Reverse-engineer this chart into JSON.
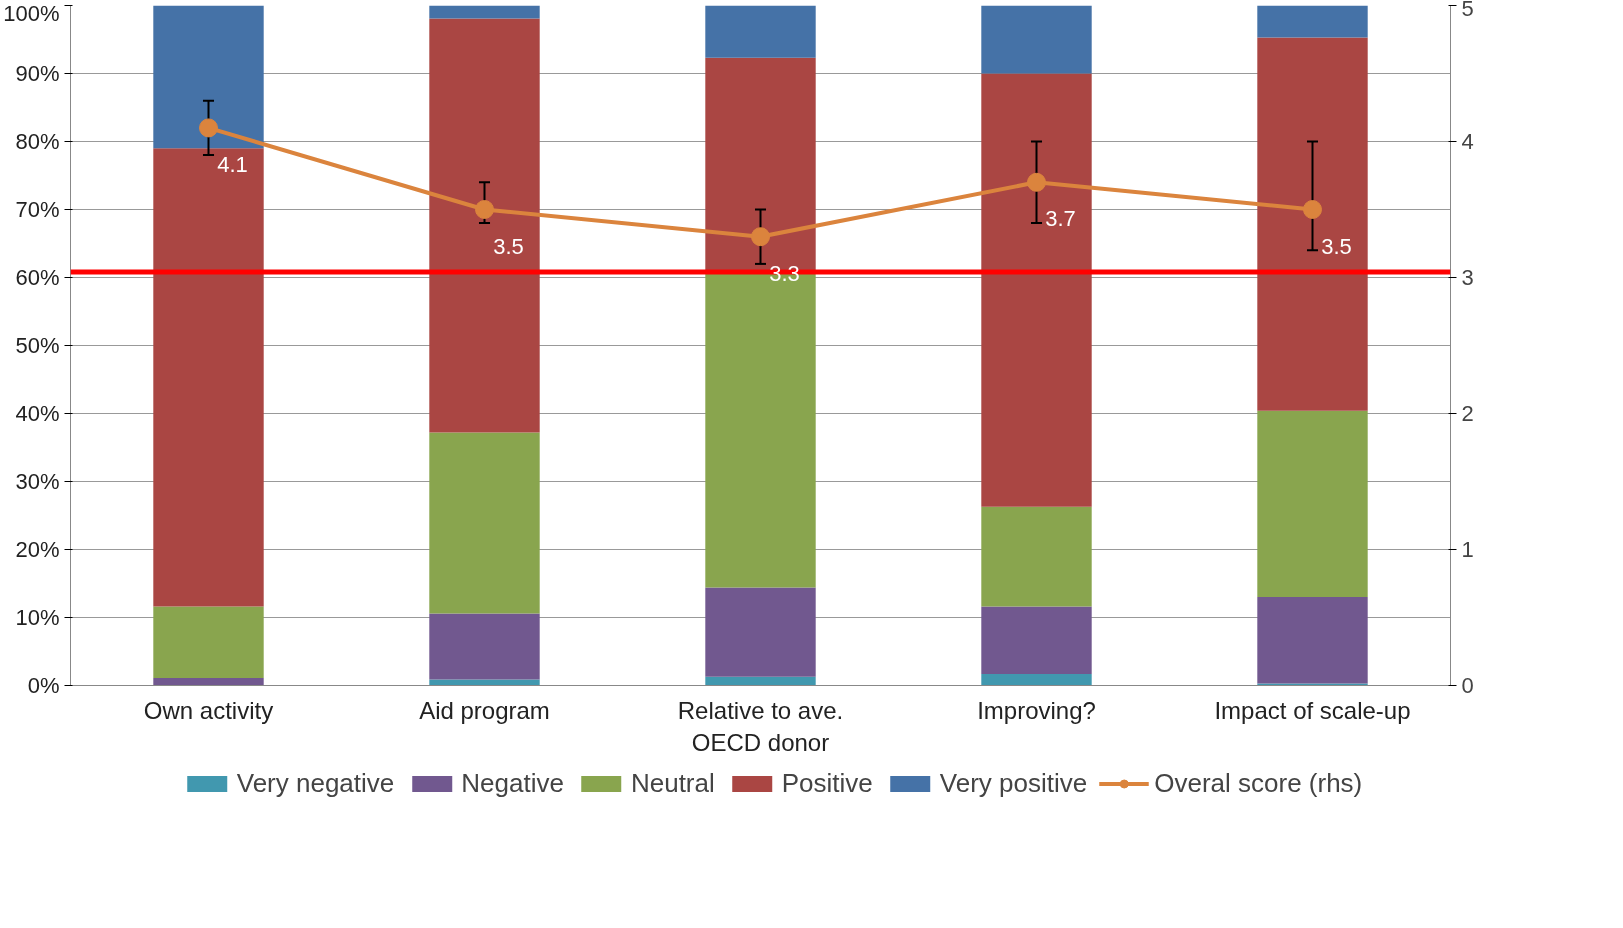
{
  "chart_data": {
    "type": "bar",
    "stacked": true,
    "categories": [
      "Own activity",
      "Aid program",
      "Relative to ave. OECD donor",
      "Improving?",
      "Impact of scale-up"
    ],
    "series": [
      {
        "name": "Very negative",
        "color": "#4198af",
        "values": [
          0,
          0.9,
          1.3,
          1.7,
          0.3
        ]
      },
      {
        "name": "Negative",
        "color": "#71588f",
        "values": [
          1.1,
          9.7,
          13.1,
          9.9,
          12.7
        ]
      },
      {
        "name": "Neutral",
        "color": "#89a54e",
        "values": [
          10.5,
          26.6,
          46.1,
          14.7,
          27.4
        ]
      },
      {
        "name": "Positive",
        "color": "#aa4643",
        "values": [
          67.4,
          60.9,
          31.8,
          63.7,
          54.9
        ]
      },
      {
        "name": "Very positive",
        "color": "#4572a7",
        "values": [
          21.0,
          1.9,
          7.7,
          10.0,
          5.0
        ]
      },
      {
        "name": "Overal score (rhs)",
        "type": "line",
        "axis": "y2",
        "color": "#db843d",
        "marker": "circle",
        "values": [
          4.1,
          3.5,
          3.3,
          3.7,
          3.5
        ],
        "errors": [
          [
            3.9,
            4.3
          ],
          [
            3.4,
            3.7
          ],
          [
            3.1,
            3.5
          ],
          [
            3.4,
            4.0
          ],
          [
            3.2,
            4.0
          ]
        ],
        "value_labels": [
          "4.1",
          "3.5",
          "3.3",
          "3.7",
          "3.5"
        ]
      }
    ],
    "ylim": [
      0,
      100
    ],
    "yticks": [
      {
        "value": 0,
        "label": "0%"
      },
      {
        "value": 10,
        "label": "10%"
      },
      {
        "value": 20,
        "label": "20%"
      },
      {
        "value": 30,
        "label": "30%"
      },
      {
        "value": 40,
        "label": "40%"
      },
      {
        "value": 50,
        "label": "50%"
      },
      {
        "value": 60,
        "label": "60%"
      },
      {
        "value": 70,
        "label": "70%"
      },
      {
        "value": 80,
        "label": "80%"
      },
      {
        "value": 90,
        "label": "90%"
      },
      {
        "value": 100,
        "label": "100%"
      }
    ],
    "y2lim": [
      0,
      5
    ],
    "y2ticks": [
      0,
      1,
      2,
      3,
      4,
      5
    ],
    "ref_lines": [
      {
        "axis": "y2",
        "value": 3.04,
        "color": "#ff0000"
      }
    ],
    "grid": "y",
    "legend": "bottom"
  }
}
